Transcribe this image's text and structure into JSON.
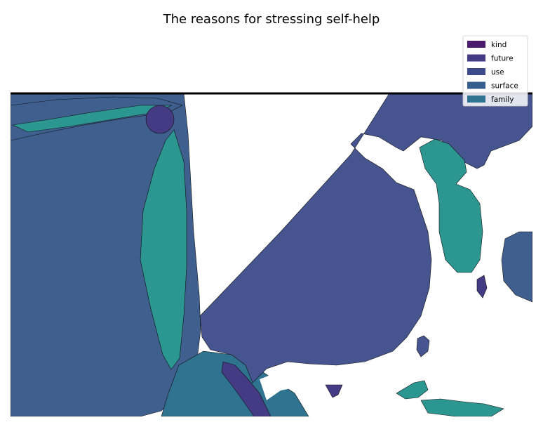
{
  "chart_data": {
    "type": "choropleth-map",
    "title": "The reasons for stressing self-help",
    "xlabel": "",
    "ylabel": "",
    "grid": false,
    "legend_placement": "top-right",
    "series": [
      {
        "name": "kind",
        "color": "#4a1a6b"
      },
      {
        "name": "future",
        "color": "#443b84"
      },
      {
        "name": "use",
        "color": "#3f4a8a"
      },
      {
        "name": "surface",
        "color": "#355f8d"
      },
      {
        "name": "family",
        "color": "#2f7390"
      }
    ],
    "region_colors": {
      "kind": "#4a1a6b",
      "future": "#443b84",
      "use": "#46558f",
      "surface": "#3f5f8e",
      "family": "#2f7390",
      "teal": "#2c9791"
    }
  }
}
